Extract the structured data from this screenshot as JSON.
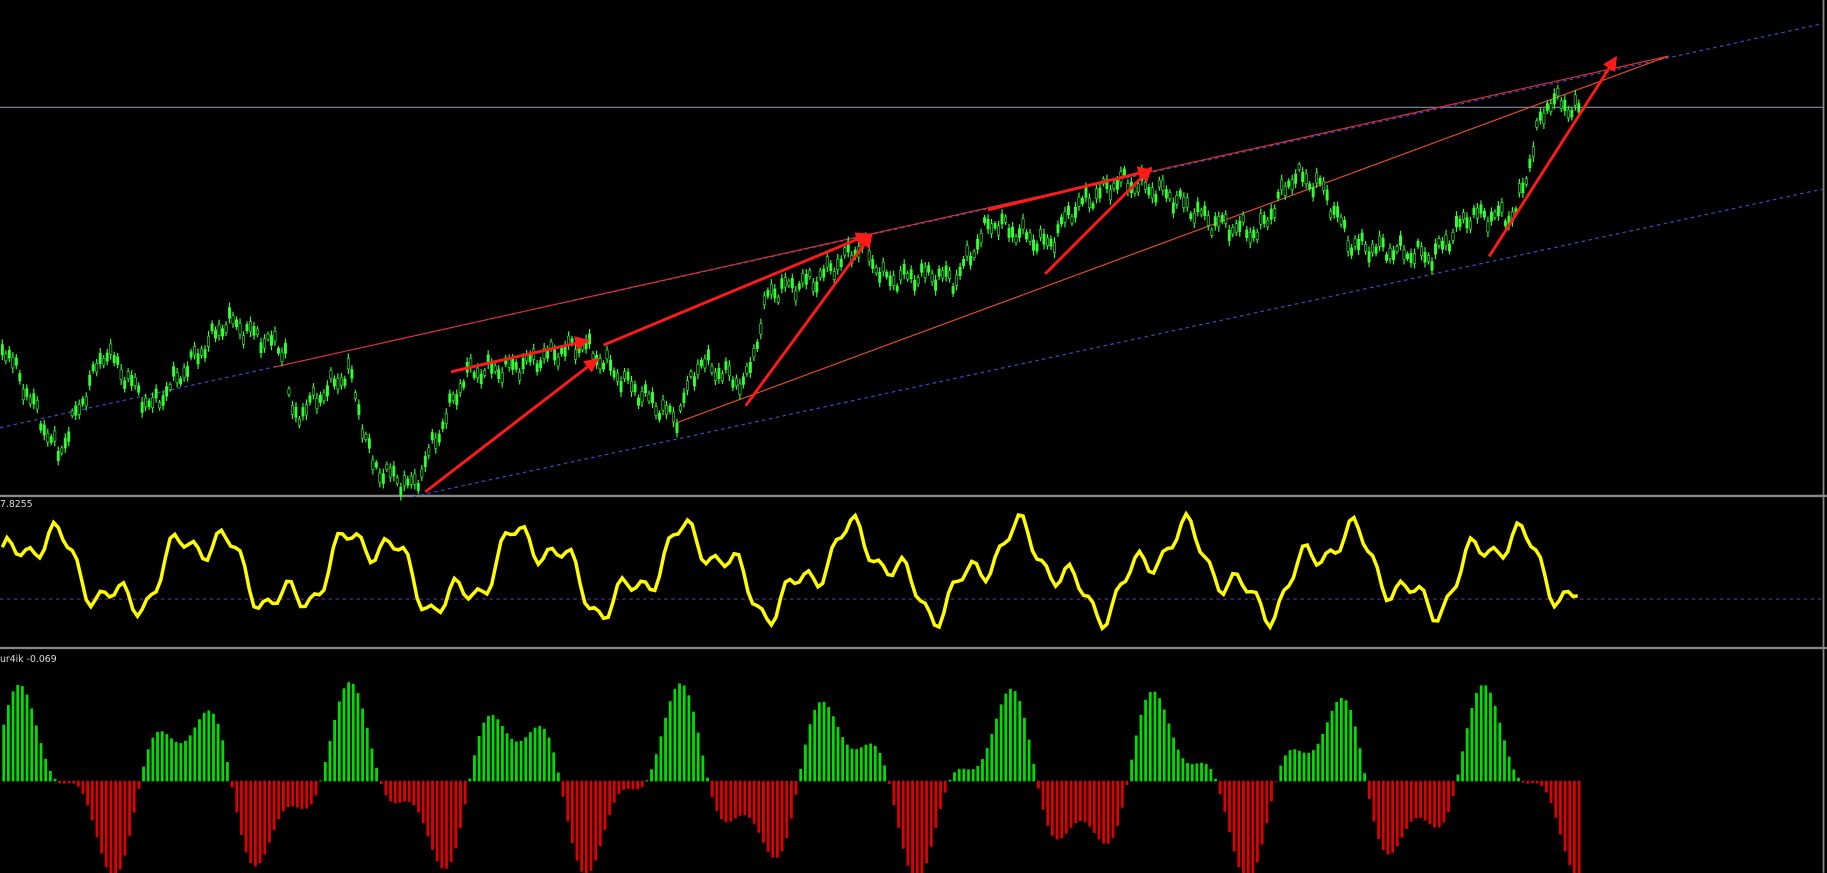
{
  "indicators": {
    "oscillator_label": "7.8255",
    "histogram_label": "ur4ik -0.069"
  }
}
